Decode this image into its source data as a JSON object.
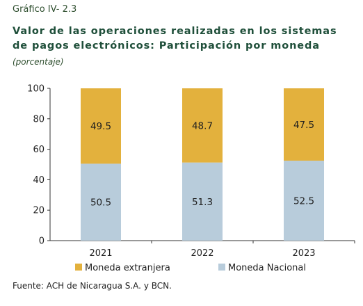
{
  "header": {
    "figure_label": "Gráfico IV- 2.3",
    "title": "Valor de las operaciones realizadas en los sistemas de pagos electrónicos: Participación por moneda",
    "subtitle": "(porcentaje)"
  },
  "footer": {
    "source": "Fuente: ACH de Nicaragua S.A. y BCN."
  },
  "colors": {
    "moneda_extranjera": "#E3B13D",
    "moneda_nacional": "#B8CCDB"
  },
  "chart_data": {
    "type": "bar",
    "stacked": true,
    "categories": [
      "2021",
      "2022",
      "2023"
    ],
    "series": [
      {
        "name": "Moneda Nacional",
        "values": [
          50.5,
          51.3,
          52.5
        ],
        "color": "#B8CCDB"
      },
      {
        "name": "Moneda extranjera",
        "values": [
          49.5,
          48.7,
          47.5
        ],
        "color": "#E3B13D"
      }
    ],
    "ylim": [
      0,
      100
    ],
    "yticks": [
      "0",
      "20",
      "40",
      "60",
      "80",
      "100"
    ],
    "legend_order": [
      "Moneda extranjera",
      "Moneda Nacional"
    ],
    "legend_position": "bottom",
    "grid": false
  }
}
